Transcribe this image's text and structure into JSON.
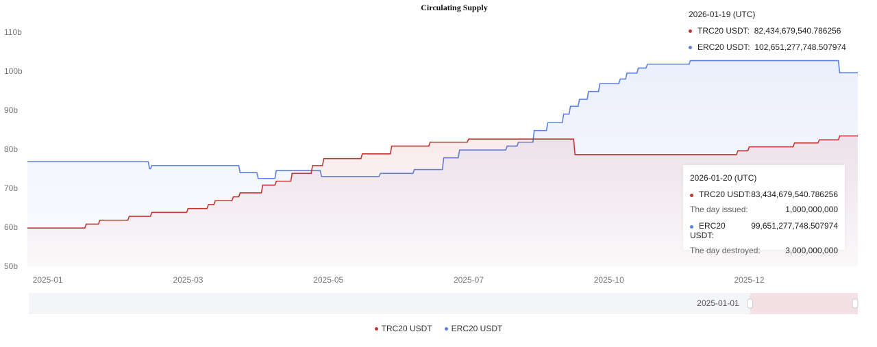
{
  "chart_data": {
    "type": "line",
    "title": "Circulating Supply",
    "x_unit": "days since start of visible range",
    "xlim": [
      0,
      367
    ],
    "ylim": [
      50,
      110
    ],
    "yticks": [
      50,
      60,
      70,
      80,
      90,
      100,
      110
    ],
    "ytick_labels": [
      "50b",
      "60b",
      "70b",
      "80b",
      "90b",
      "100b",
      "110b"
    ],
    "xticks": [
      {
        "day": 9,
        "label": "2025-01"
      },
      {
        "day": 71,
        "label": "2025-03"
      },
      {
        "day": 133,
        "label": "2025-05"
      },
      {
        "day": 195,
        "label": "2025-07"
      },
      {
        "day": 257,
        "label": "2025-10"
      },
      {
        "day": 319,
        "label": "2025-12"
      }
    ],
    "series": [
      {
        "name": "TRC20 USDT",
        "color": "#c23531",
        "points": [
          [
            0,
            59.8
          ],
          [
            26,
            60.8
          ],
          [
            32,
            61.8
          ],
          [
            45,
            62.8
          ],
          [
            55,
            63.8
          ],
          [
            71,
            64.8
          ],
          [
            80,
            65.8
          ],
          [
            83,
            66.8
          ],
          [
            91,
            67.8
          ],
          [
            94,
            68.8
          ],
          [
            104,
            70.8
          ],
          [
            110,
            71.8
          ],
          [
            117,
            73.8
          ],
          [
            126,
            75.8
          ],
          [
            131,
            77.6
          ],
          [
            148,
            78.8
          ],
          [
            161,
            80.8
          ],
          [
            178,
            81.8
          ],
          [
            195,
            82.6
          ],
          [
            242,
            78.6
          ],
          [
            314,
            79.6
          ],
          [
            319,
            80.6
          ],
          [
            339,
            81.6
          ],
          [
            350,
            82.4
          ],
          [
            359,
            83.4
          ],
          [
            367,
            83.4
          ]
        ]
      },
      {
        "name": "ERC20 USDT",
        "color": "#5b7fe6",
        "points": [
          [
            0,
            76.8
          ],
          [
            54,
            75
          ],
          [
            55,
            75.8
          ],
          [
            94,
            74
          ],
          [
            102,
            72.5
          ],
          [
            110,
            74.5
          ],
          [
            130,
            73
          ],
          [
            156,
            73.8
          ],
          [
            171,
            74.8
          ],
          [
            184,
            77.8
          ],
          [
            191,
            79.8
          ],
          [
            212,
            80.8
          ],
          [
            217,
            81.8
          ],
          [
            224,
            84.8
          ],
          [
            230,
            86.8
          ],
          [
            237,
            89
          ],
          [
            240,
            91
          ],
          [
            244,
            92.8
          ],
          [
            248,
            94.8
          ],
          [
            253,
            96.8
          ],
          [
            262,
            98
          ],
          [
            265,
            99.5
          ],
          [
            270,
            100.8
          ],
          [
            274,
            101.8
          ],
          [
            293,
            102.7
          ],
          [
            359,
            99.6
          ],
          [
            367,
            99.6
          ]
        ]
      }
    ],
    "legend": "bottom"
  },
  "tooltip_top": {
    "date": "2026-01-19 (UTC)",
    "rows": [
      {
        "label": "TRC20 USDT:",
        "value": "82,434,679,540.786256"
      },
      {
        "label": "ERC20 USDT:",
        "value": "102,651,277,748.507974"
      }
    ]
  },
  "tooltip_box": {
    "date": "2026-01-20 (UTC)",
    "trc_label": "TRC20 USDT:",
    "trc_value": "83,434,679,540.786256",
    "issued_label": "The day issued:",
    "issued_value": "1,000,000,000",
    "erc_label": "ERC20 USDT:",
    "erc_value": "99,651,277,748.507974",
    "destroyed_label": "The day destroyed:",
    "destroyed_value": "3,000,000,000"
  },
  "zoom_slider": {
    "start_label": "2025-01-01",
    "start_fraction": 0.87,
    "end_fraction": 1.0
  },
  "legend": [
    "TRC20 USDT",
    "ERC20 USDT"
  ]
}
